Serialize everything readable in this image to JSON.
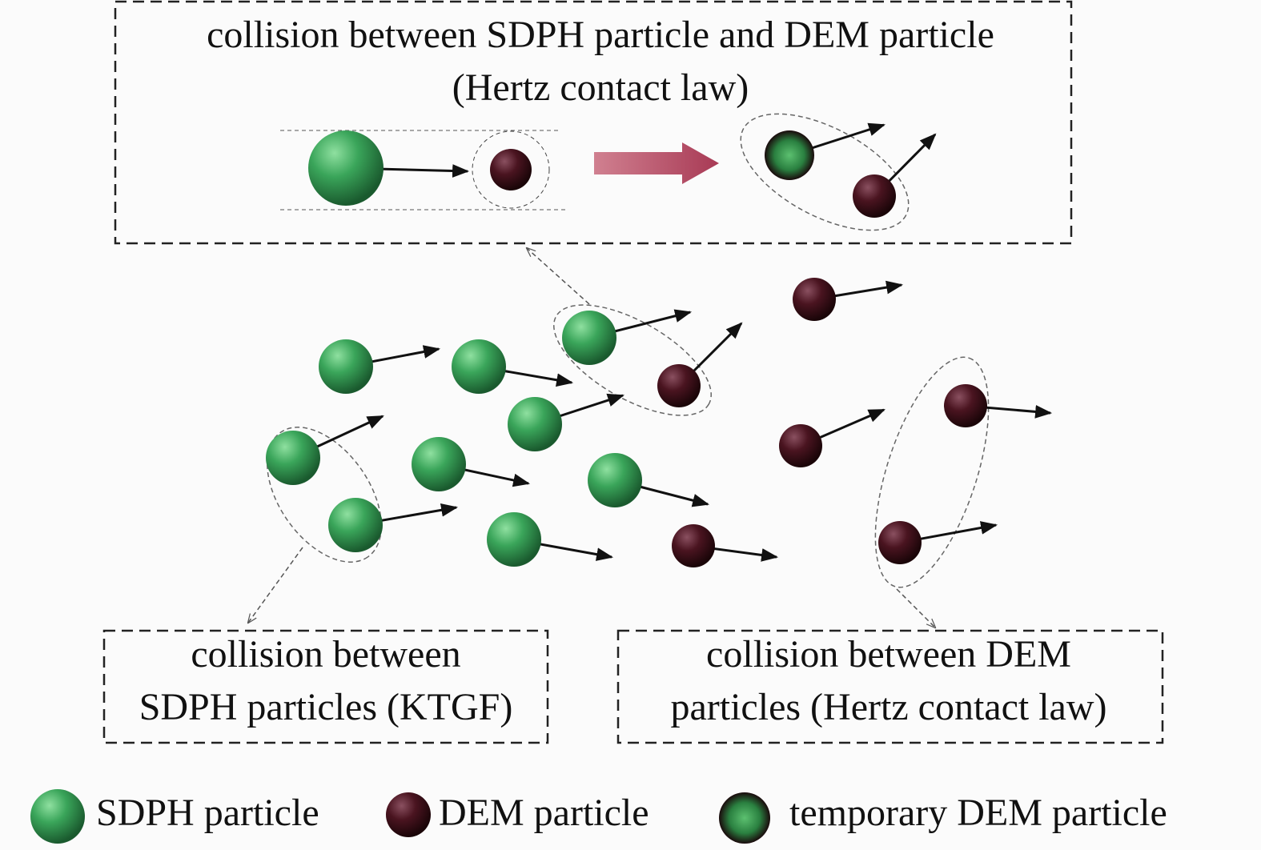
{
  "boxes": [
    {
      "lines": [
        "collision between SDPH particle and DEM particle",
        "(Hertz contact law)"
      ]
    },
    {
      "lines": [
        "collision between",
        "SDPH particles (KTGF)"
      ]
    },
    {
      "lines": [
        "collision between DEM",
        "particles (Hertz contact law)"
      ]
    }
  ],
  "legend": [
    {
      "label": "SDPH particle"
    },
    {
      "label": "DEM particle"
    },
    {
      "label": "temporary DEM particle"
    }
  ]
}
